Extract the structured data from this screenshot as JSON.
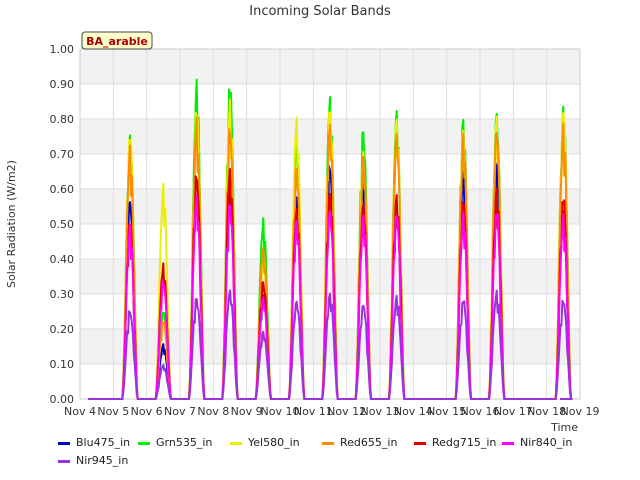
{
  "chart_data": {
    "type": "line",
    "title": "Incoming Solar Bands",
    "xlabel": "Time",
    "ylabel": "Solar Radiation (W/m2)",
    "badge": "BA_arable",
    "ylim": [
      0.0,
      1.0
    ],
    "yticks": [
      "0.00",
      "0.10",
      "0.20",
      "0.30",
      "0.40",
      "0.50",
      "0.60",
      "0.70",
      "0.80",
      "0.90",
      "1.00"
    ],
    "xticks": [
      "Nov 4",
      "Nov 5",
      "Nov 6",
      "Nov 7",
      "Nov 8",
      "Nov 9",
      "Nov 10",
      "Nov 11",
      "Nov 12",
      "Nov 13",
      "Nov 14",
      "Nov 15",
      "Nov 16",
      "Nov 17",
      "Nov 18",
      "Nov 19"
    ],
    "x_start_day": 4,
    "x_end_day": 19,
    "grid": true,
    "legend_position": "bottom",
    "days": [
      5,
      6,
      7,
      8,
      9,
      10,
      11,
      12,
      13,
      15,
      16,
      18
    ],
    "series": [
      {
        "name": "Blu475_in",
        "color": "#0000cc",
        "peaks": [
          0.59,
          0.16,
          0.66,
          0.65,
          0.31,
          0.58,
          0.69,
          0.64,
          0.58,
          0.67,
          0.7,
          0.56
        ]
      },
      {
        "name": "Grn535_in",
        "color": "#00ee00",
        "peaks": [
          0.77,
          0.26,
          0.92,
          0.92,
          0.52,
          0.76,
          0.88,
          0.8,
          0.85,
          0.83,
          0.85,
          0.86
        ]
      },
      {
        "name": "Yel580_in",
        "color": "#eeee00",
        "peaks": [
          0.78,
          0.62,
          0.85,
          0.86,
          0.43,
          0.82,
          0.86,
          0.73,
          0.83,
          0.8,
          0.83,
          0.86
        ]
      },
      {
        "name": "Red655_in",
        "color": "#ff8c00",
        "peaks": [
          0.73,
          0.23,
          0.81,
          0.8,
          0.44,
          0.69,
          0.81,
          0.72,
          0.79,
          0.78,
          0.8,
          0.8
        ]
      },
      {
        "name": "Redg715_in",
        "color": "#dd0000",
        "peaks": [
          0.52,
          0.39,
          0.66,
          0.67,
          0.35,
          0.56,
          0.61,
          0.58,
          0.6,
          0.59,
          0.61,
          0.59
        ]
      },
      {
        "name": "Nir840_in",
        "color": "#ff00ff",
        "peaks": [
          0.5,
          0.35,
          0.59,
          0.58,
          0.3,
          0.53,
          0.56,
          0.54,
          0.55,
          0.54,
          0.55,
          0.53
        ]
      },
      {
        "name": "Nir945_in",
        "color": "#9933dd",
        "peaks": [
          0.26,
          0.1,
          0.3,
          0.32,
          0.2,
          0.29,
          0.31,
          0.28,
          0.3,
          0.29,
          0.31,
          0.29
        ]
      }
    ]
  }
}
